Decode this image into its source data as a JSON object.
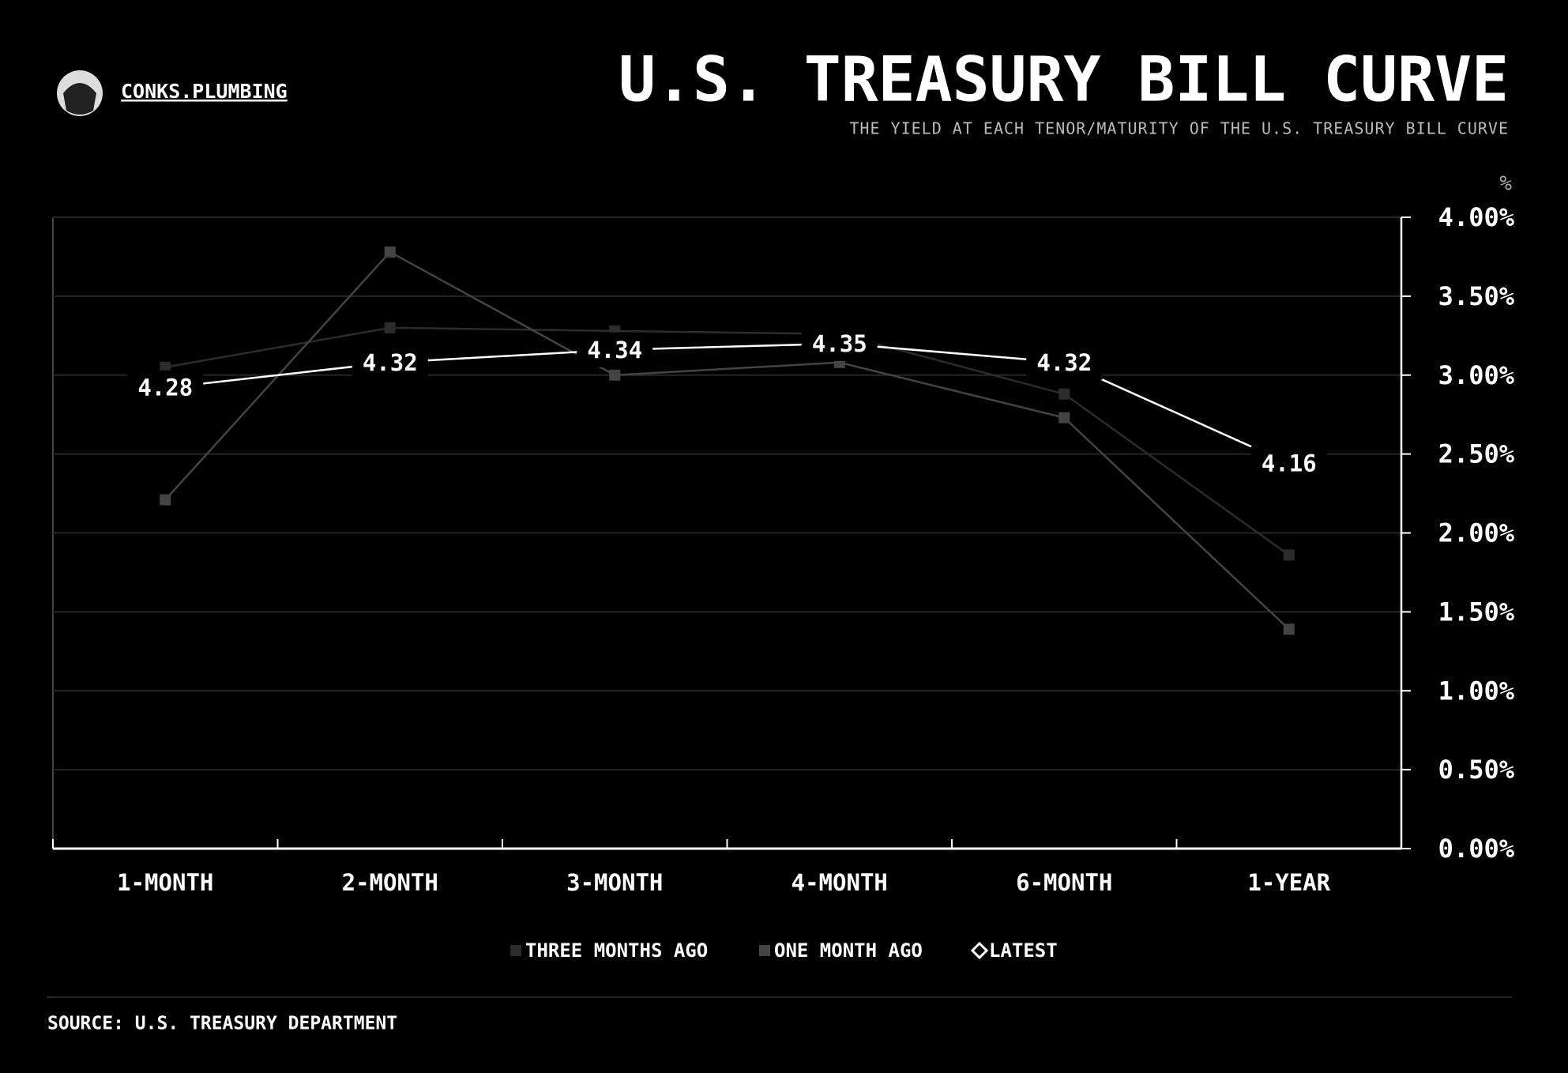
{
  "brand": "CONKS.PLUMBING",
  "chart_data": {
    "type": "line",
    "title": "U.S. TREASURY BILL CURVE",
    "subtitle": "THE YIELD AT EACH TENOR/MATURITY OF THE U.S. TREASURY BILL CURVE",
    "y_label": "%",
    "source": "SOURCE: U.S. TREASURY DEPARTMENT",
    "categories": [
      "1-MONTH",
      "2-MONTH",
      "3-MONTH",
      "4-MONTH",
      "6-MONTH",
      "1-YEAR"
    ],
    "ylim": [
      0,
      4
    ],
    "yticks": [
      {
        "value": 0,
        "label": "0.00%"
      },
      {
        "value": 0.5,
        "label": "0.50%"
      },
      {
        "value": 1,
        "label": "1.00%"
      },
      {
        "value": 1.5,
        "label": "1.50%"
      },
      {
        "value": 2,
        "label": "2.00%"
      },
      {
        "value": 2.5,
        "label": "2.50%"
      },
      {
        "value": 3,
        "label": "3.00%"
      },
      {
        "value": 3.5,
        "label": "3.50%"
      },
      {
        "value": 4,
        "label": "4.00%"
      }
    ],
    "y2lim": [
      3.55,
      4.55
    ],
    "grid": true,
    "legend": "bottom",
    "series": [
      {
        "name": "THREE MONTHS AGO",
        "color": "#2c2c2c",
        "marker": "square",
        "values": [
          3.05,
          3.3,
          3.28,
          3.26,
          2.88,
          1.86
        ]
      },
      {
        "name": "ONE MONTH AGO",
        "color": "#444444",
        "marker": "square",
        "values": [
          2.21,
          3.78,
          3.0,
          3.08,
          2.73,
          1.39
        ]
      },
      {
        "name": "LATEST",
        "color": "#ffffff",
        "marker": "diamond",
        "axis": "y2",
        "values": [
          4.28,
          4.32,
          4.34,
          4.35,
          4.32,
          4.16
        ]
      }
    ]
  }
}
